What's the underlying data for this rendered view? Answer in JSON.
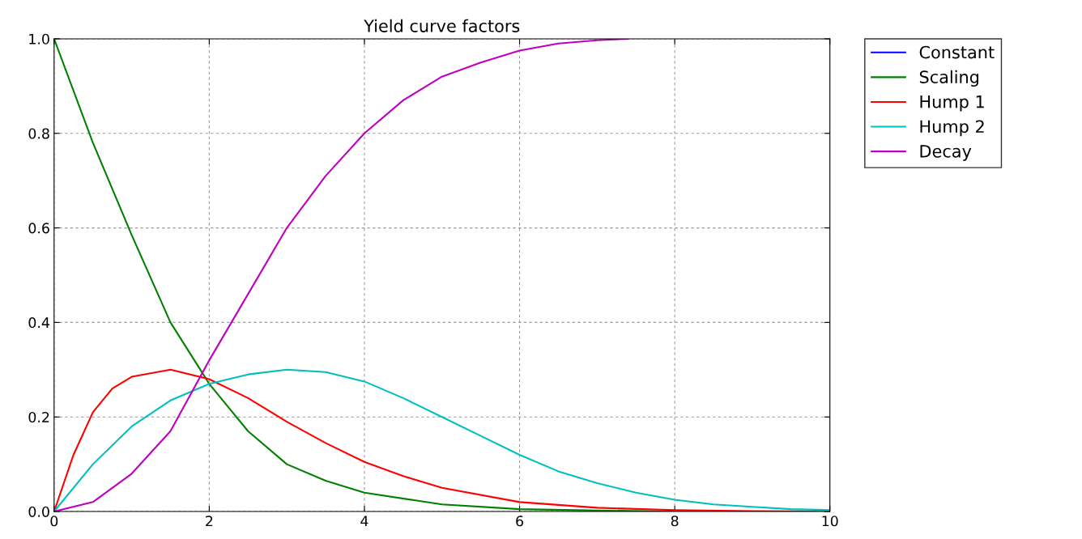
{
  "chart_data": {
    "type": "line",
    "title": "Yield curve factors",
    "xlim": [
      0,
      10
    ],
    "ylim": [
      0,
      1.0
    ],
    "xticks": [
      0,
      2,
      4,
      6,
      8,
      10
    ],
    "yticks": [
      {
        "value": 0,
        "label": "0.0"
      },
      {
        "value": 0.2,
        "label": "0.2"
      },
      {
        "value": 0.4,
        "label": "0.4"
      },
      {
        "value": 0.6,
        "label": "0.6"
      },
      {
        "value": 0.8,
        "label": "0.8"
      },
      {
        "value": 1.0,
        "label": "1.0"
      }
    ],
    "grid": true,
    "legend": "top right",
    "marker": "none",
    "line_style": "solid",
    "series": [
      {
        "name": "Constant",
        "color": "#0000ff"
      },
      {
        "name": "Scaling",
        "color": "#008000",
        "x": [
          0,
          0.5,
          1,
          1.5,
          2,
          2.5,
          3,
          3.5,
          4,
          5,
          6,
          7,
          8,
          10
        ],
        "values": [
          1.0,
          0.78,
          0.585,
          0.4,
          0.27,
          0.17,
          0.1,
          0.065,
          0.04,
          0.015,
          0.005,
          0.002,
          0,
          0
        ]
      },
      {
        "name": "Hump 1",
        "color": "#ff0000",
        "x": [
          0,
          0.25,
          0.5,
          0.75,
          1,
          1.5,
          2,
          2.5,
          3,
          3.5,
          4,
          4.5,
          5,
          6,
          7,
          8,
          9,
          10
        ],
        "values": [
          0,
          0.12,
          0.21,
          0.26,
          0.285,
          0.3,
          0.28,
          0.24,
          0.19,
          0.145,
          0.105,
          0.075,
          0.05,
          0.02,
          0.008,
          0.003,
          0.001,
          0
        ]
      },
      {
        "name": "Hump 2",
        "color": "#00bfbf",
        "x": [
          0,
          0.5,
          1,
          1.5,
          2,
          2.5,
          3,
          3.5,
          4,
          4.5,
          5,
          5.5,
          6,
          6.5,
          7,
          7.5,
          8,
          8.5,
          9,
          9.5,
          10
        ],
        "values": [
          0,
          0.1,
          0.18,
          0.235,
          0.27,
          0.29,
          0.3,
          0.295,
          0.275,
          0.24,
          0.2,
          0.16,
          0.12,
          0.085,
          0.06,
          0.04,
          0.025,
          0.015,
          0.01,
          0.005,
          0.003
        ]
      },
      {
        "name": "Decay",
        "color": "#bf00bf",
        "x": [
          0,
          0.5,
          1,
          1.5,
          2,
          2.5,
          3,
          3.5,
          4,
          4.5,
          5,
          5.5,
          6,
          6.5,
          7,
          7.4
        ],
        "values": [
          0,
          0.02,
          0.08,
          0.17,
          0.32,
          0.46,
          0.6,
          0.71,
          0.8,
          0.87,
          0.92,
          0.95,
          0.975,
          0.99,
          0.997,
          1.0
        ]
      }
    ]
  }
}
